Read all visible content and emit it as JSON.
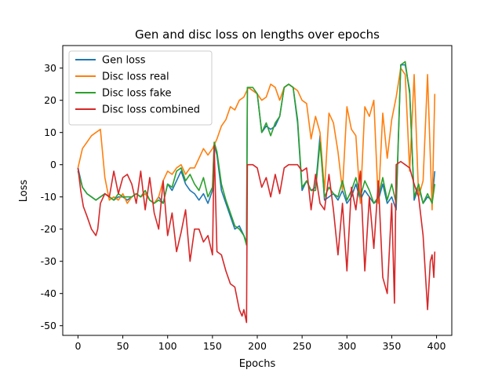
{
  "chart_data": {
    "type": "line",
    "title": "Gen and disc loss on lengths over epochs",
    "xlabel": "Epochs",
    "ylabel": "Loss",
    "xlim": [
      -17,
      417
    ],
    "ylim": [
      -53,
      37
    ],
    "xticks": [
      0,
      50,
      100,
      150,
      200,
      250,
      300,
      350,
      400
    ],
    "yticks": [
      -50,
      -40,
      -30,
      -20,
      -10,
      0,
      10,
      20,
      30
    ],
    "grid": false,
    "legend_position": "top-left",
    "series": [
      {
        "name": "Gen loss",
        "color": "#1f77b4",
        "x": [
          0,
          5,
          10,
          15,
          20,
          25,
          30,
          35,
          40,
          45,
          50,
          55,
          60,
          65,
          70,
          75,
          80,
          85,
          90,
          95,
          100,
          105,
          110,
          115,
          120,
          125,
          130,
          135,
          140,
          145,
          150,
          152,
          155,
          160,
          165,
          170,
          175,
          180,
          185,
          188,
          189,
          190,
          195,
          200,
          205,
          210,
          215,
          220,
          225,
          230,
          235,
          240,
          245,
          250,
          255,
          260,
          265,
          270,
          275,
          280,
          285,
          290,
          295,
          300,
          305,
          310,
          315,
          320,
          325,
          330,
          335,
          340,
          345,
          350,
          355,
          360,
          365,
          370,
          375,
          380,
          385,
          390,
          395,
          398
        ],
        "values": [
          -1,
          -7,
          -9,
          -10,
          -11,
          -10,
          -9,
          -10,
          -11,
          -10,
          -10,
          -11,
          -10,
          -9,
          -10,
          -9,
          -11,
          -12,
          -10,
          -12,
          -6,
          -8,
          -5,
          -2,
          -6,
          -8,
          -9,
          -11,
          -9,
          -12,
          -8,
          6,
          3,
          -8,
          -12,
          -16,
          -20,
          -19,
          -22,
          -24,
          24,
          24,
          23,
          22,
          10,
          12,
          11,
          12,
          15,
          24,
          25,
          24,
          13,
          -8,
          -5,
          -8,
          -7,
          9,
          -11,
          -10,
          -9,
          -11,
          -8,
          -12,
          -10,
          -6,
          -11,
          -8,
          -10,
          -12,
          -11,
          -6,
          -12,
          -10,
          -14,
          31,
          31,
          23,
          -11,
          -7,
          -12,
          -10,
          -11,
          -2
        ]
      },
      {
        "name": "Disc loss real",
        "color": "#ff7f0e",
        "x": [
          0,
          5,
          10,
          15,
          20,
          25,
          30,
          35,
          40,
          45,
          50,
          55,
          60,
          65,
          70,
          75,
          80,
          85,
          90,
          95,
          100,
          105,
          110,
          115,
          120,
          125,
          130,
          135,
          140,
          145,
          150,
          155,
          160,
          165,
          170,
          175,
          180,
          185,
          190,
          195,
          200,
          205,
          210,
          215,
          220,
          225,
          230,
          235,
          240,
          245,
          250,
          255,
          260,
          265,
          270,
          275,
          280,
          285,
          290,
          295,
          300,
          305,
          310,
          315,
          320,
          325,
          330,
          335,
          340,
          345,
          350,
          355,
          360,
          365,
          370,
          375,
          380,
          385,
          390,
          395,
          398
        ],
        "values": [
          -1,
          5,
          7,
          9,
          10,
          11,
          -4,
          -11,
          -10,
          -11,
          -9,
          -12,
          -10,
          -9,
          -10,
          -9,
          -11,
          -12,
          -10,
          -5,
          -2,
          -3,
          -1,
          0,
          -3,
          -1,
          -1,
          2,
          5,
          3,
          5,
          8,
          12,
          14,
          18,
          17,
          20,
          21,
          24,
          23,
          22,
          20,
          21,
          25,
          24,
          20,
          24,
          25,
          24,
          23,
          20,
          19,
          8,
          15,
          10,
          -8,
          16,
          13,
          4,
          -8,
          18,
          11,
          9,
          -12,
          18,
          15,
          20,
          -12,
          16,
          2,
          14,
          21,
          30,
          28,
          -2,
          28,
          -10,
          -5,
          28,
          -14,
          22
        ]
      },
      {
        "name": "Disc loss fake",
        "color": "#2ca02c",
        "x": [
          0,
          5,
          10,
          15,
          20,
          25,
          30,
          35,
          40,
          45,
          50,
          55,
          60,
          65,
          70,
          75,
          80,
          85,
          90,
          95,
          100,
          105,
          110,
          115,
          120,
          125,
          130,
          135,
          140,
          145,
          150,
          152,
          155,
          160,
          165,
          170,
          175,
          180,
          185,
          188,
          189,
          190,
          195,
          200,
          205,
          210,
          215,
          220,
          225,
          230,
          235,
          240,
          245,
          250,
          255,
          260,
          265,
          270,
          275,
          280,
          285,
          290,
          295,
          300,
          305,
          310,
          315,
          320,
          325,
          330,
          335,
          340,
          345,
          350,
          355,
          360,
          365,
          370,
          375,
          380,
          385,
          390,
          395,
          398
        ],
        "values": [
          -2,
          -7,
          -9,
          -10,
          -11,
          -10,
          -9,
          -10,
          -11,
          -9,
          -10,
          -10,
          -10,
          -9,
          -10,
          -8,
          -11,
          -12,
          -11,
          -12,
          -6,
          -7,
          -2,
          -1,
          -5,
          -3,
          -6,
          -8,
          -4,
          -10,
          -7,
          7,
          4,
          -6,
          -11,
          -15,
          -19,
          -20,
          -22,
          -25,
          24,
          24,
          24,
          22,
          10,
          13,
          9,
          13,
          15,
          24,
          25,
          24,
          14,
          -7,
          -5,
          -8,
          -8,
          7,
          -10,
          -7,
          -9,
          -10,
          -5,
          -11,
          -8,
          -4,
          -10,
          -5,
          -8,
          -12,
          -10,
          -4,
          -11,
          -6,
          -12,
          31,
          32,
          22,
          -10,
          -6,
          -12,
          -9,
          -12,
          -6
        ]
      },
      {
        "name": "Disc loss combined",
        "color": "#d62728",
        "x": [
          0,
          3,
          6,
          10,
          15,
          20,
          22,
          25,
          30,
          35,
          40,
          45,
          50,
          55,
          60,
          65,
          70,
          75,
          80,
          85,
          90,
          95,
          100,
          105,
          110,
          115,
          120,
          125,
          130,
          135,
          140,
          145,
          150,
          152,
          155,
          160,
          165,
          170,
          175,
          180,
          183,
          185,
          188,
          189,
          190,
          195,
          200,
          205,
          210,
          215,
          220,
          225,
          230,
          235,
          240,
          245,
          250,
          255,
          260,
          265,
          270,
          275,
          280,
          285,
          290,
          295,
          300,
          305,
          310,
          315,
          320,
          325,
          330,
          335,
          340,
          345,
          350,
          353,
          355,
          360,
          365,
          370,
          375,
          380,
          385,
          390,
          393,
          395,
          397,
          398
        ],
        "values": [
          -1,
          -8,
          -13,
          -16,
          -20,
          -22,
          -20,
          -12,
          -9,
          -10,
          -2,
          -9,
          -4,
          -3,
          -6,
          -12,
          -2,
          -14,
          -4,
          -15,
          -20,
          -5,
          -22,
          -15,
          -27,
          -21,
          -14,
          -30,
          -20,
          -20,
          -24,
          -22,
          -28,
          6,
          -27,
          -28,
          -33,
          -37,
          -38,
          -45,
          -47,
          -45,
          -49,
          0,
          0,
          0,
          -1,
          -7,
          -4,
          -10,
          -3,
          -9,
          -1,
          0,
          0,
          0,
          -2,
          -1,
          -14,
          -3,
          -12,
          -14,
          -3,
          -14,
          -28,
          -12,
          -33,
          -7,
          -14,
          -2,
          -33,
          -10,
          -26,
          -5,
          -35,
          -40,
          -12,
          -43,
          0,
          1,
          0,
          -1,
          -6,
          -10,
          -22,
          -45,
          -30,
          -28,
          -35,
          -27
        ]
      }
    ]
  }
}
